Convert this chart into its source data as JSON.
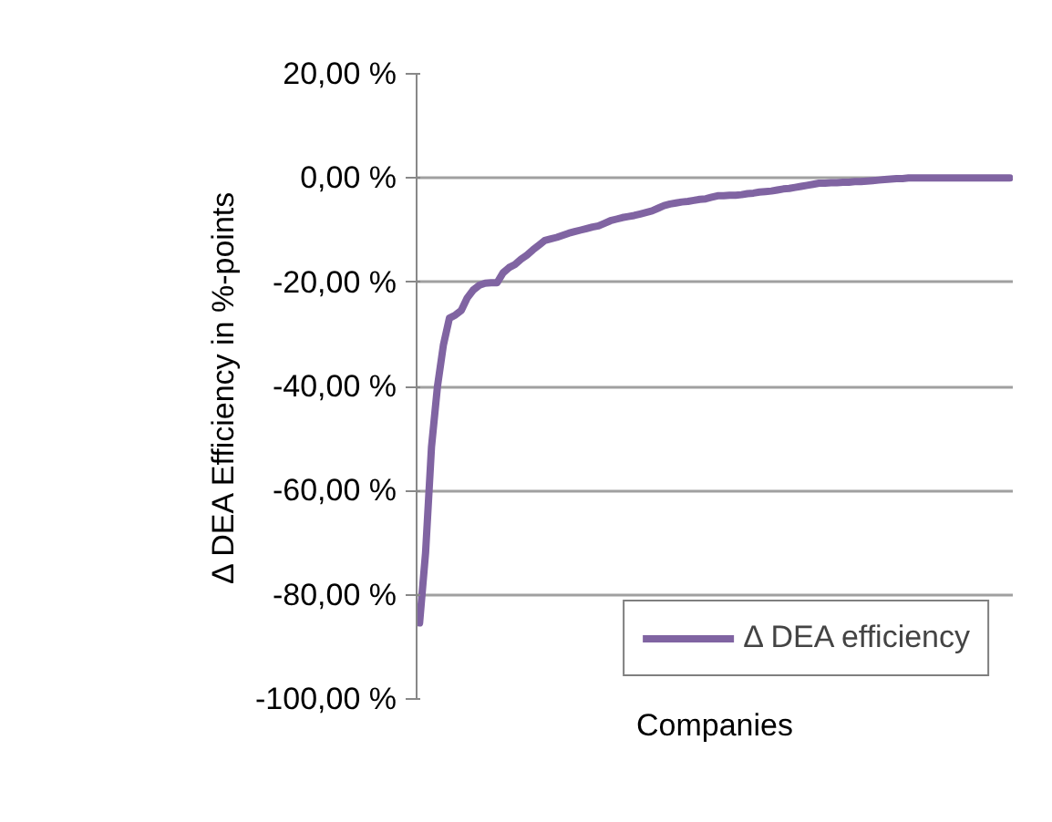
{
  "chart_data": {
    "type": "line",
    "xlabel": "Companies",
    "ylabel": "Δ DEA Efficiency in %-points",
    "categories": [
      null,
      null,
      null,
      null,
      null,
      null,
      null,
      null,
      null,
      null,
      null,
      null,
      null,
      null,
      null,
      null,
      null,
      null,
      null,
      null,
      null,
      null,
      null,
      null,
      null,
      null,
      null,
      null,
      null,
      null,
      null,
      null,
      null,
      null,
      null,
      null,
      null,
      null,
      null,
      null,
      null,
      null,
      null,
      null,
      null,
      null,
      null,
      null,
      null,
      null,
      null,
      null,
      null,
      null,
      null,
      null,
      null,
      null,
      null,
      null,
      null,
      null,
      null,
      null,
      null,
      null,
      null,
      null,
      null,
      null,
      null,
      null,
      null,
      null,
      null,
      null,
      null,
      null,
      null,
      null,
      null,
      null,
      null,
      null,
      null,
      null,
      null,
      null,
      null,
      null,
      null,
      null,
      null,
      null,
      null,
      null,
      null,
      null,
      null,
      null
    ],
    "series": [
      {
        "name": "Δ DEA efficiency",
        "color": "#8064a2",
        "values": [
          -85.4,
          -72,
          -51.6,
          -40,
          -32,
          -26.9,
          -26.3,
          -25.4,
          -23,
          -21.5,
          -20.6,
          -20.2,
          -20.1,
          -20.1,
          -18.2,
          -17.2,
          -16.6,
          -15.6,
          -14.8,
          -13.8,
          -12.9,
          -12.0,
          -11.7,
          -11.4,
          -11.0,
          -10.6,
          -10.3,
          -10.0,
          -9.7,
          -9.4,
          -9.2,
          -8.7,
          -8.2,
          -7.9,
          -7.6,
          -7.4,
          -7.2,
          -6.9,
          -6.6,
          -6.3,
          -5.8,
          -5.3,
          -5.0,
          -4.8,
          -4.6,
          -4.5,
          -4.3,
          -4.1,
          -4.0,
          -3.7,
          -3.4,
          -3.4,
          -3.3,
          -3.3,
          -3.2,
          -3.0,
          -2.9,
          -2.7,
          -2.6,
          -2.5,
          -2.3,
          -2.1,
          -2.0,
          -1.8,
          -1.6,
          -1.4,
          -1.2,
          -1.0,
          -1.0,
          -0.9,
          -0.9,
          -0.8,
          -0.8,
          -0.7,
          -0.7,
          -0.6,
          -0.5,
          -0.4,
          -0.3,
          -0.2,
          -0.1,
          -0.1,
          0,
          0,
          0,
          0,
          0,
          0,
          0,
          0,
          0,
          0,
          0,
          0,
          0,
          0,
          0,
          0,
          0,
          0
        ]
      }
    ],
    "ylim": [
      -100,
      20
    ],
    "yticks": [
      {
        "value": -100,
        "label": "-100,00 %"
      },
      {
        "value": -80,
        "label": "-80,00 %"
      },
      {
        "value": -60,
        "label": "-60,00 %"
      },
      {
        "value": -40,
        "label": "-40,00 %"
      },
      {
        "value": -20,
        "label": "-20,00 %"
      },
      {
        "value": 0,
        "label": "0,00 %"
      },
      {
        "value": 20,
        "label": "20,00 %"
      }
    ],
    "grid": "y",
    "legend": "bottom right",
    "marker": "none",
    "line_style": "solid"
  }
}
